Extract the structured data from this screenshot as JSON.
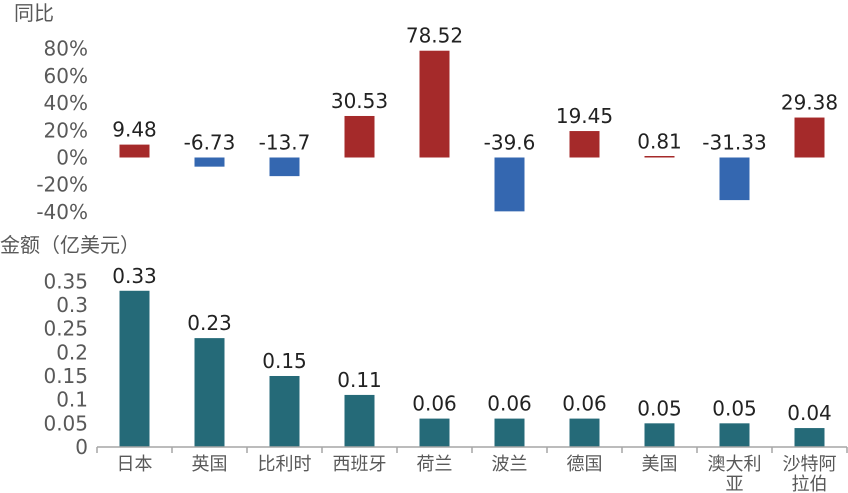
{
  "chart_data": [
    {
      "type": "bar",
      "ylabel": "同比",
      "categories": [
        "日本",
        "英国",
        "比利时",
        "西班牙",
        "荷兰",
        "波兰",
        "德国",
        "美国",
        "澳大利亚",
        "沙特阿拉伯"
      ],
      "values": [
        9.48,
        -6.73,
        -13.7,
        30.53,
        78.52,
        -39.6,
        19.45,
        0.81,
        -31.33,
        29.38
      ],
      "data_labels": [
        "9.48",
        "-6.73",
        "-13.7",
        "30.53",
        "78.52",
        "-39.6",
        "19.45",
        "0.81",
        "-31.33",
        "29.38"
      ],
      "ylim": [
        -40,
        80
      ],
      "yticks": [
        "80%",
        "60%",
        "40%",
        "20%",
        "0%",
        "-20%",
        "-40%"
      ],
      "colors": {
        "positive": "#A52A2A",
        "negative": "#3467B0"
      },
      "grid": false
    },
    {
      "type": "bar",
      "ylabel": "金额（亿美元）",
      "categories": [
        "日本",
        "英国",
        "比利时",
        "西班牙",
        "荷兰",
        "波兰",
        "德国",
        "美国",
        "澳大利亚",
        "沙特阿拉伯"
      ],
      "category_lines": [
        [
          "日本"
        ],
        [
          "英国"
        ],
        [
          "比利时"
        ],
        [
          "西班牙"
        ],
        [
          "荷兰"
        ],
        [
          "波兰"
        ],
        [
          "德国"
        ],
        [
          "美国"
        ],
        [
          "澳大利",
          "亚"
        ],
        [
          "沙特阿",
          "拉伯"
        ]
      ],
      "values": [
        0.33,
        0.23,
        0.15,
        0.11,
        0.06,
        0.06,
        0.06,
        0.05,
        0.05,
        0.04
      ],
      "data_labels": [
        "0.33",
        "0.23",
        "0.15",
        "0.11",
        "0.06",
        "0.06",
        "0.06",
        "0.05",
        "0.05",
        "0.04"
      ],
      "ylim": [
        0,
        0.35
      ],
      "yticks": [
        "0.35",
        "0.3",
        "0.25",
        "0.2",
        "0.15",
        "0.1",
        "0.05",
        "0"
      ],
      "colors": {
        "bar": "#256A78",
        "axis": "#A6A6A6"
      },
      "grid": false
    }
  ]
}
